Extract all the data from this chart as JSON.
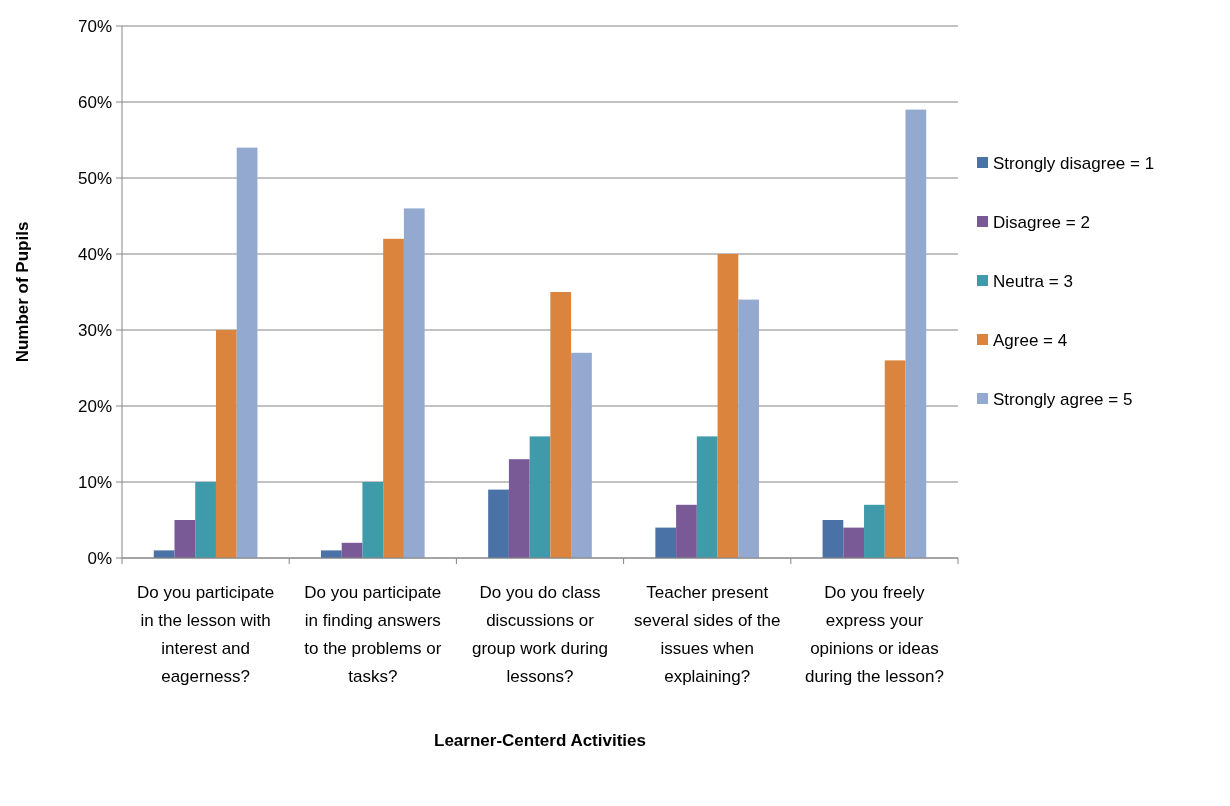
{
  "chart_data": {
    "type": "bar",
    "xlabel": "Learner-Centerd Activities",
    "ylabel": "Number of Pupils",
    "categories": [
      "Do you participate in the lesson with interest and eagerness?",
      "Do you participate in finding answers to the problems or tasks?",
      "Do you do class discussions or group work during lessons?",
      "Teacher present several sides of the issues when explaining?",
      "Do you freely express your opinions or ideas during the lesson?"
    ],
    "series": [
      {
        "name": "Strongly disagree = 1",
        "color": "#4a72a6",
        "values": [
          1,
          1,
          9,
          4,
          5
        ]
      },
      {
        "name": "Disagree = 2",
        "color": "#7a5a96",
        "values": [
          5,
          2,
          13,
          7,
          4
        ]
      },
      {
        "name": "Neutra = 3",
        "color": "#3f9aaa",
        "values": [
          10,
          10,
          16,
          16,
          7
        ]
      },
      {
        "name": "Agree = 4",
        "color": "#db843d",
        "values": [
          30,
          42,
          35,
          40,
          26
        ]
      },
      {
        "name": "Strongly agree = 5",
        "color": "#93a9d0",
        "values": [
          54,
          46,
          27,
          34,
          59
        ]
      }
    ],
    "ylim": [
      0,
      70
    ],
    "yticks": [
      {
        "value": 0,
        "label": "0%"
      },
      {
        "value": 10,
        "label": "10%"
      },
      {
        "value": 20,
        "label": "20%"
      },
      {
        "value": 30,
        "label": "30%"
      },
      {
        "value": 40,
        "label": "40%"
      },
      {
        "value": 50,
        "label": "50%"
      },
      {
        "value": 60,
        "label": "60%"
      },
      {
        "value": 70,
        "label": "70%"
      }
    ],
    "grid": "y",
    "legend": "right"
  }
}
